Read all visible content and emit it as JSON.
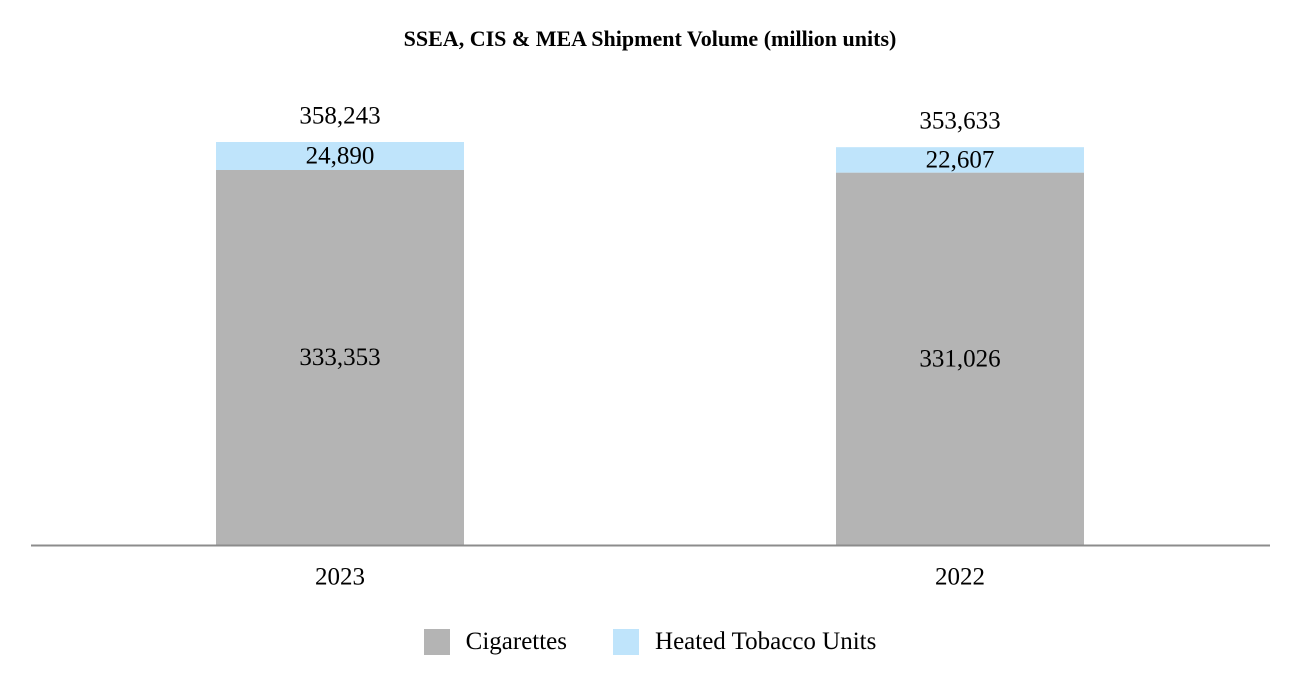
{
  "chart_data": {
    "type": "bar",
    "stacked": true,
    "title": "SSEA, CIS & MEA Shipment Volume (million units)",
    "categories": [
      "2023",
      "2022"
    ],
    "series": [
      {
        "name": "Cigarettes",
        "values": [
          333353,
          331026
        ],
        "labels": [
          "333,353",
          "331,026"
        ],
        "color": "#b4b4b4"
      },
      {
        "name": "Heated Tobacco Units",
        "values": [
          24890,
          22607
        ],
        "labels": [
          "24,890",
          "22,607"
        ],
        "color": "#bfe4fb"
      }
    ],
    "totals": [
      358243,
      353633
    ],
    "total_labels": [
      "358,243",
      "353,633"
    ],
    "ylim": [
      0,
      358243
    ],
    "xlabel": "",
    "ylabel": "",
    "legend": "bottom-center",
    "grid": false
  }
}
